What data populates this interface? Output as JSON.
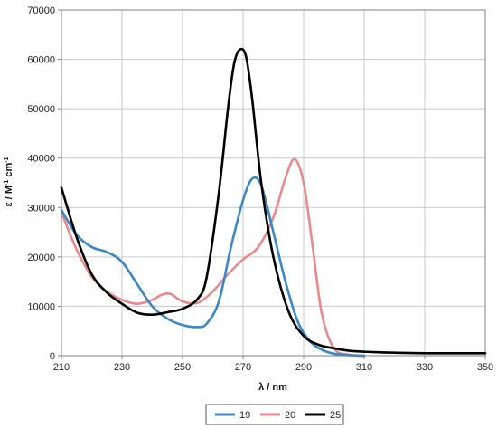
{
  "chart_data": {
    "type": "line",
    "title": "",
    "xlabel": "λ / nm",
    "ylabel": {
      "main": "ε / M",
      "sup1": "-1",
      "mid": " cm",
      "sup2": "-1"
    },
    "xlim": [
      210,
      350
    ],
    "ylim": [
      0,
      70000
    ],
    "x_ticks": [
      "210",
      "230",
      "250",
      "270",
      "290",
      "310",
      "330",
      "350"
    ],
    "y_ticks": [
      "0",
      "10000",
      "20000",
      "30000",
      "40000",
      "50000",
      "60000",
      "70000"
    ],
    "grid": true,
    "legend_position": "bottom",
    "series": [
      {
        "name": "19",
        "color": "#3a87c8",
        "x": [
          210,
          215,
          220,
          225,
          230,
          235,
          240,
          245,
          250,
          255,
          258,
          262,
          266,
          270,
          273,
          276,
          280,
          284,
          288,
          292,
          296,
          300,
          305,
          310
        ],
        "y": [
          29500,
          24500,
          22000,
          21000,
          19000,
          14500,
          10000,
          7500,
          6200,
          5800,
          6500,
          11000,
          22000,
          31500,
          35800,
          34500,
          25000,
          15000,
          7000,
          3000,
          1200,
          400,
          100,
          0
        ]
      },
      {
        "name": "20",
        "color": "#e8898c",
        "x": [
          210,
          215,
          220,
          225,
          230,
          235,
          240,
          243,
          246,
          250,
          255,
          260,
          265,
          270,
          275,
          280,
          284,
          287,
          290,
          293,
          296,
          300,
          305,
          310
        ],
        "y": [
          29000,
          21500,
          16000,
          13000,
          11300,
          10500,
          11300,
          12300,
          12500,
          11000,
          10700,
          13000,
          16500,
          19500,
          22000,
          28000,
          36000,
          39800,
          35000,
          22000,
          8500,
          1500,
          200,
          0
        ]
      },
      {
        "name": "25",
        "color": "#000000",
        "x": [
          210,
          215,
          220,
          225,
          230,
          235,
          240,
          245,
          250,
          255,
          258,
          262,
          265,
          267,
          269,
          271,
          273,
          276,
          280,
          285,
          290,
          295,
          300,
          305,
          310,
          320,
          330,
          350
        ],
        "y": [
          34000,
          24000,
          16500,
          12800,
          10500,
          8700,
          8300,
          8800,
          9500,
          11500,
          16000,
          33000,
          50000,
          59000,
          62000,
          60500,
          52000,
          35000,
          20000,
          9000,
          4000,
          2200,
          1500,
          1000,
          800,
          600,
          500,
          500
        ]
      }
    ]
  }
}
